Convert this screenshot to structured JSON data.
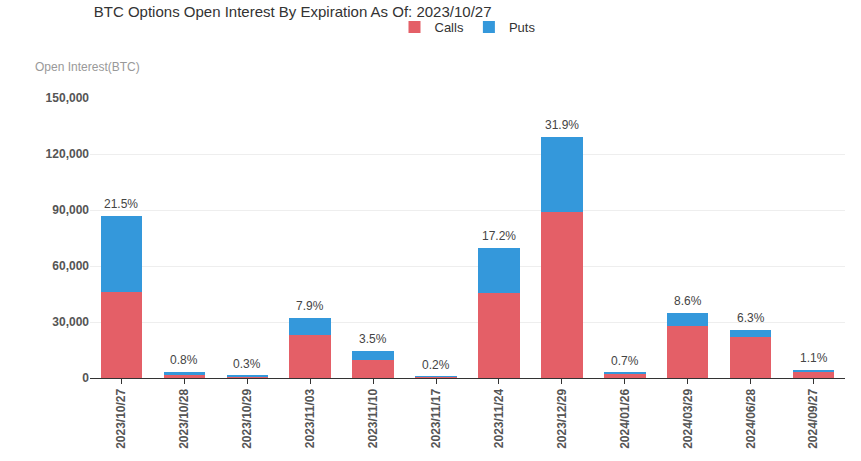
{
  "chart_data": {
    "type": "bar",
    "title": "BTC Options Open Interest By Expiration As Of: 2023/10/27",
    "y_label": "Open Interest(BTC)",
    "categories": [
      "2023/10/27",
      "2023/10/28",
      "2023/10/29",
      "2023/11/03",
      "2023/11/10",
      "2023/11/17",
      "2023/11/24",
      "2023/12/29",
      "2024/01/26",
      "2024/03/29",
      "2024/06/28",
      "2024/09/27"
    ],
    "series": [
      {
        "name": "Calls",
        "color": "#e45f67",
        "values": [
          46000,
          1800,
          800,
          22900,
          9500,
          600,
          45800,
          89100,
          2400,
          27900,
          21900,
          3700
        ]
      },
      {
        "name": "Puts",
        "color": "#3498db",
        "values": [
          41000,
          1400,
          400,
          9100,
          4700,
          200,
          23900,
          39900,
          400,
          6900,
          3600,
          800
        ]
      }
    ],
    "annotations": [
      "21.5%",
      "0.8%",
      "0.3%",
      "7.9%",
      "3.5%",
      "0.2%",
      "17.2%",
      "31.9%",
      "0.7%",
      "8.6%",
      "6.3%",
      "1.1%"
    ],
    "stacked": true,
    "ylim": [
      0,
      150000
    ],
    "yticks": [
      0,
      {
        "value": 30000,
        "label": "30,000"
      },
      {
        "value": 60000,
        "label": "60,000"
      },
      {
        "value": 90000,
        "label": "90,000"
      },
      {
        "value": 120000,
        "label": "120,000"
      },
      {
        "value": 150000,
        "label": "150,000"
      }
    ],
    "grid": true,
    "legend": "top"
  }
}
